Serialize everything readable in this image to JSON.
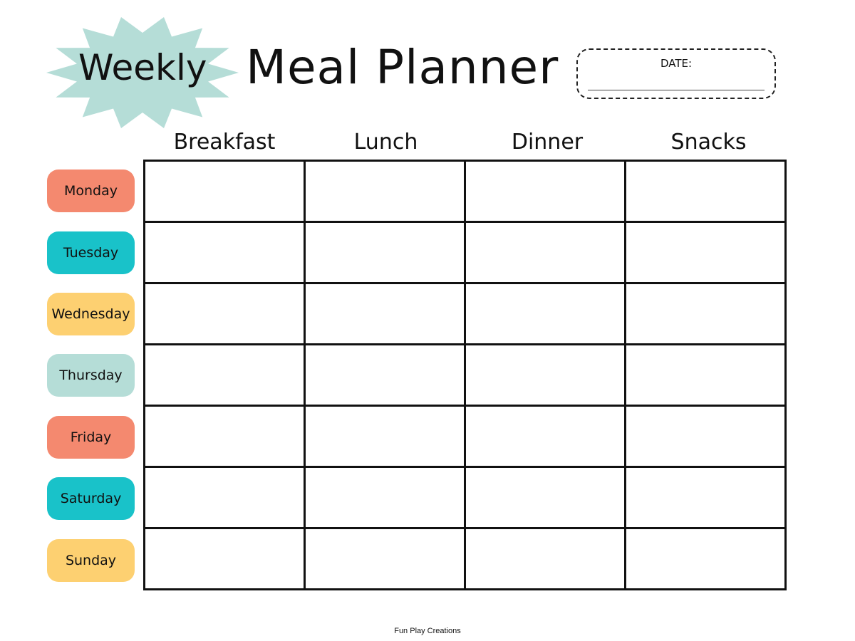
{
  "header": {
    "weekly": "Weekly",
    "title": "Meal Planner",
    "date_label": "DATE:",
    "burst_color": "#b5ddd7"
  },
  "columns": [
    "Breakfast",
    "Lunch",
    "Dinner",
    "Snacks"
  ],
  "days": [
    {
      "label": "Monday",
      "color": "#f4896f"
    },
    {
      "label": "Tuesday",
      "color": "#19c2c9"
    },
    {
      "label": "Wednesday",
      "color": "#fdd071"
    },
    {
      "label": "Thursday",
      "color": "#b5ddd7"
    },
    {
      "label": "Friday",
      "color": "#f4896f"
    },
    {
      "label": "Saturday",
      "color": "#19c2c9"
    },
    {
      "label": "Sunday",
      "color": "#fdd071"
    }
  ],
  "footer": "Fun Play Creations"
}
